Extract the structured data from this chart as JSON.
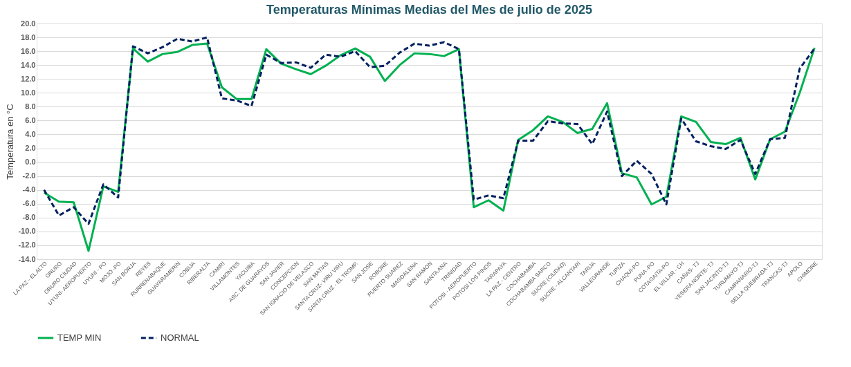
{
  "chart_data": {
    "type": "line",
    "title": "Temperaturas  Mínimas Medias del Mes de julio de 2025",
    "ylabel": "Temperatura en °C",
    "categories": [
      "LA PAZ - EL ALTO",
      "ORURO",
      "ORURO CIUDAD",
      "UYUNI- AEROPUERTO",
      "UYUNI - PO",
      "MOJO -PO",
      "SAN BORJA",
      "REYES",
      "RURRENABAQUE",
      "GUAYARAMERIN",
      "COBIJA",
      "RIBERALTA",
      "CAMIRI",
      "VILLAMONTES",
      "YACUIBA",
      "ASC. DE GUARAYOS",
      "SAN JAVIER",
      "CONCEPCION",
      "SAN IGNACIO DE VELASCO",
      "SAN MATIAS",
      "SANTA CRUZ- VIRU VIRU",
      "SANTA CRUZ - EL TROMP.",
      "SAN JOSE",
      "ROBORE",
      "PUERTO SUAREZ",
      "MAGDALENA",
      "SAN RAMON",
      "SANTA ANA",
      "TRINIDAD",
      "POTOSI - AEROPUERTO",
      "POTOSI LOS PINOS",
      "TARAPAYA",
      "LA PAZ - CENTRO",
      "COCHABAMBA",
      "COCHABAMBA SARCO",
      "SUCRE (CIUDAD)",
      "SUCRE - ALCANTARI",
      "TARIJA",
      "VALLEGRANDE",
      "TUPIZA",
      "CHAQUI-PO",
      "PUNA -PO",
      "COTAGAITA-PO",
      "EL VILLAR - CH",
      "CAÑAS- TJ",
      "YESERA NORTE- TJ",
      "SAN JACINTO-TJ",
      "TURUMAYO-TJ",
      "CAMPANARIO-TJ",
      "SELLA QUEBRADA-TJ",
      "TRANCAS-TJ",
      "APOLO",
      "CHIMORE"
    ],
    "series": [
      {
        "name": "TEMP MIN",
        "color": "#00b050",
        "line_style": "solid",
        "values": [
          -4.4,
          -5.7,
          -5.8,
          -12.8,
          -3.5,
          -4.3,
          16.4,
          14.5,
          15.6,
          15.9,
          16.9,
          17.1,
          10.8,
          9.1,
          9.1,
          16.3,
          14.2,
          13.4,
          12.7,
          13.9,
          15.4,
          16.4,
          15.2,
          11.7,
          14.0,
          15.7,
          15.6,
          15.3,
          16.3,
          -6.5,
          -5.5,
          -7.0,
          3.2,
          4.6,
          6.6,
          5.8,
          4.2,
          4.8,
          8.5,
          -1.6,
          -2.2,
          -6.1,
          -5.0,
          6.6,
          5.8,
          2.9,
          2.6,
          3.5,
          -2.5,
          3.3,
          4.4,
          10.0,
          16.5
        ]
      },
      {
        "name": "NORMAL",
        "color": "#002060",
        "line_style": "dashed",
        "values": [
          -4.0,
          -7.7,
          -6.5,
          -8.9,
          -3.2,
          -5.1,
          16.7,
          15.7,
          16.6,
          17.8,
          17.4,
          18.0,
          9.2,
          8.9,
          8.1,
          15.5,
          14.3,
          14.4,
          13.6,
          15.5,
          15.2,
          16.0,
          13.7,
          13.9,
          15.8,
          17.1,
          16.8,
          17.3,
          16.3,
          -5.4,
          -4.8,
          -5.2,
          3.1,
          3.1,
          5.9,
          5.6,
          5.5,
          2.6,
          7.3,
          -2.0,
          0.2,
          -1.7,
          -6.1,
          6.3,
          3.0,
          2.3,
          1.9,
          3.2,
          -1.7,
          3.3,
          3.5,
          13.5,
          16.4
        ]
      }
    ],
    "ylim": [
      -14,
      20
    ],
    "yticks": [
      {
        "value": -14,
        "label": "-14.0"
      },
      {
        "value": -12,
        "label": "-12.0"
      },
      {
        "value": -10,
        "label": "-10.0"
      },
      {
        "value": -8,
        "label": "-8.0"
      },
      {
        "value": -6,
        "label": "-6.0"
      },
      {
        "value": -4,
        "label": "-4.0"
      },
      {
        "value": -2,
        "label": "-2.0"
      },
      {
        "value": 0,
        "label": "0.0"
      },
      {
        "value": 2,
        "label": "2.0"
      },
      {
        "value": 4,
        "label": "4.0"
      },
      {
        "value": 6,
        "label": "6.0"
      },
      {
        "value": 8,
        "label": "8.0"
      },
      {
        "value": 10,
        "label": "10.0"
      },
      {
        "value": 12,
        "label": "12.0"
      },
      {
        "value": 14,
        "label": "14.0"
      },
      {
        "value": 16,
        "label": "16.0"
      },
      {
        "value": 18,
        "label": "18.0"
      },
      {
        "value": 20,
        "label": "20.0"
      }
    ],
    "grid": "y",
    "legend": "bottom",
    "marker": "none"
  }
}
